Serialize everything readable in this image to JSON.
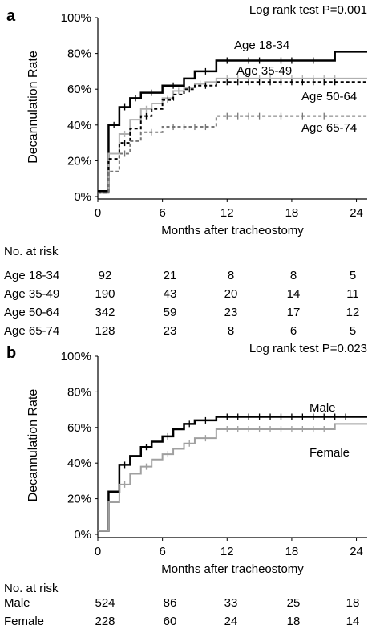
{
  "chart_data": [
    {
      "type": "line",
      "panel_label": "a",
      "annotation": "Log rank test P=0.001",
      "xlabel": "Months after tracheostomy",
      "ylabel": "Decannulation Rate",
      "xlim": [
        0,
        25
      ],
      "ylim": [
        0,
        100
      ],
      "x_ticks": [
        "0",
        "6",
        "12",
        "18",
        "24"
      ],
      "y_ticks": [
        "0%",
        "20%",
        "40%",
        "60%",
        "80%",
        "100%"
      ],
      "grid": false,
      "legend": "inline labels next to curves",
      "series": [
        {
          "name": "Age 18-34",
          "color": "#000000",
          "dash": "solid",
          "width": 2.5,
          "x": [
            0,
            1,
            2,
            3,
            4,
            6,
            8,
            9,
            11,
            22,
            25
          ],
          "y": [
            3,
            40,
            50,
            55,
            58,
            62,
            66,
            70,
            76,
            81,
            81
          ],
          "censor_x": [
            1.5,
            2.5,
            3.5,
            5,
            7,
            10,
            12,
            14,
            15,
            17,
            18,
            20
          ]
        },
        {
          "name": "Age 35-49",
          "color": "#b0b0b0",
          "dash": "solid",
          "width": 2,
          "x": [
            0,
            1,
            2,
            3,
            4,
            5,
            6,
            7,
            8,
            9,
            10,
            11,
            25
          ],
          "y": [
            2,
            24,
            35,
            43,
            49,
            52,
            55,
            59,
            61,
            63,
            64,
            66,
            66
          ],
          "censor_x": [
            2.5,
            4.5,
            6.5,
            7.5,
            9.5,
            12,
            13,
            14,
            15,
            16,
            17,
            18,
            19,
            20,
            21,
            22
          ]
        },
        {
          "name": "Age 50-64",
          "color": "#000000",
          "dash": "4,3",
          "width": 2,
          "x": [
            0,
            1,
            2,
            3,
            4,
            5,
            6,
            7,
            8,
            9,
            11,
            25
          ],
          "y": [
            2,
            21,
            30,
            38,
            45,
            49,
            54,
            57,
            60,
            62,
            64,
            64
          ],
          "censor_x": [
            2.5,
            4.5,
            6.5,
            8.5,
            10,
            12,
            13,
            14,
            15,
            16,
            17,
            18,
            19,
            20,
            21,
            22
          ]
        },
        {
          "name": "Age 65-74",
          "color": "#777777",
          "dash": "4,3",
          "width": 2,
          "x": [
            0,
            1,
            2,
            3,
            4,
            6,
            11,
            25
          ],
          "y": [
            2,
            14,
            24,
            31,
            36,
            39,
            45,
            45
          ],
          "censor_x": [
            2.5,
            5,
            7,
            8,
            9,
            10,
            12,
            13,
            14,
            15,
            17,
            19,
            21
          ]
        }
      ],
      "risk_table": {
        "title": "No. at risk",
        "times": [
          0,
          6,
          12,
          18,
          24
        ],
        "rows": [
          {
            "label": "Age 18-34",
            "values": [
              "92",
              "21",
              "8",
              "8",
              "5"
            ]
          },
          {
            "label": "Age 35-49",
            "values": [
              "190",
              "43",
              "20",
              "14",
              "11"
            ]
          },
          {
            "label": "Age 50-64",
            "values": [
              "342",
              "59",
              "23",
              "17",
              "12"
            ]
          },
          {
            "label": "Age 65-74",
            "values": [
              "128",
              "23",
              "8",
              "6",
              "5"
            ]
          }
        ]
      }
    },
    {
      "type": "line",
      "panel_label": "b",
      "annotation": "Log rank test P=0.023",
      "xlabel": "Months after tracheostomy",
      "ylabel": "Decannulation Rate",
      "xlim": [
        0,
        25
      ],
      "ylim": [
        0,
        100
      ],
      "x_ticks": [
        "0",
        "6",
        "12",
        "18",
        "24"
      ],
      "y_ticks": [
        "0%",
        "20%",
        "40%",
        "60%",
        "80%",
        "100%"
      ],
      "grid": false,
      "legend": "inline labels next to curves",
      "series": [
        {
          "name": "Male",
          "color": "#000000",
          "dash": "solid",
          "width": 2.5,
          "x": [
            0,
            1,
            2,
            3,
            4,
            5,
            6,
            7,
            8,
            9,
            11,
            25
          ],
          "y": [
            2,
            24,
            39,
            44,
            49,
            52,
            55,
            59,
            62,
            64,
            66,
            66
          ],
          "censor_x": [
            2.5,
            4.5,
            6.5,
            8.5,
            10,
            12,
            13,
            14,
            15,
            16,
            17,
            18,
            19,
            20,
            21,
            22,
            23
          ]
        },
        {
          "name": "Female",
          "color": "#a0a0a0",
          "dash": "solid",
          "width": 2,
          "x": [
            0,
            1,
            2,
            3,
            4,
            5,
            6,
            7,
            8,
            9,
            11,
            22,
            25
          ],
          "y": [
            2,
            18,
            28,
            34,
            38,
            42,
            45,
            48,
            51,
            54,
            59,
            62,
            62
          ],
          "censor_x": [
            2.5,
            4.5,
            6.5,
            8.5,
            10,
            12,
            13,
            14,
            15,
            16,
            17,
            18,
            19,
            20,
            21
          ]
        }
      ],
      "risk_table": {
        "title": "No. at risk",
        "times": [
          0,
          6,
          12,
          18,
          24
        ],
        "rows": [
          {
            "label": "Male",
            "values": [
              "524",
              "86",
              "33",
              "25",
              "18"
            ]
          },
          {
            "label": "Female",
            "values": [
              "228",
              "60",
              "24",
              "18",
              "14"
            ]
          }
        ]
      }
    }
  ]
}
